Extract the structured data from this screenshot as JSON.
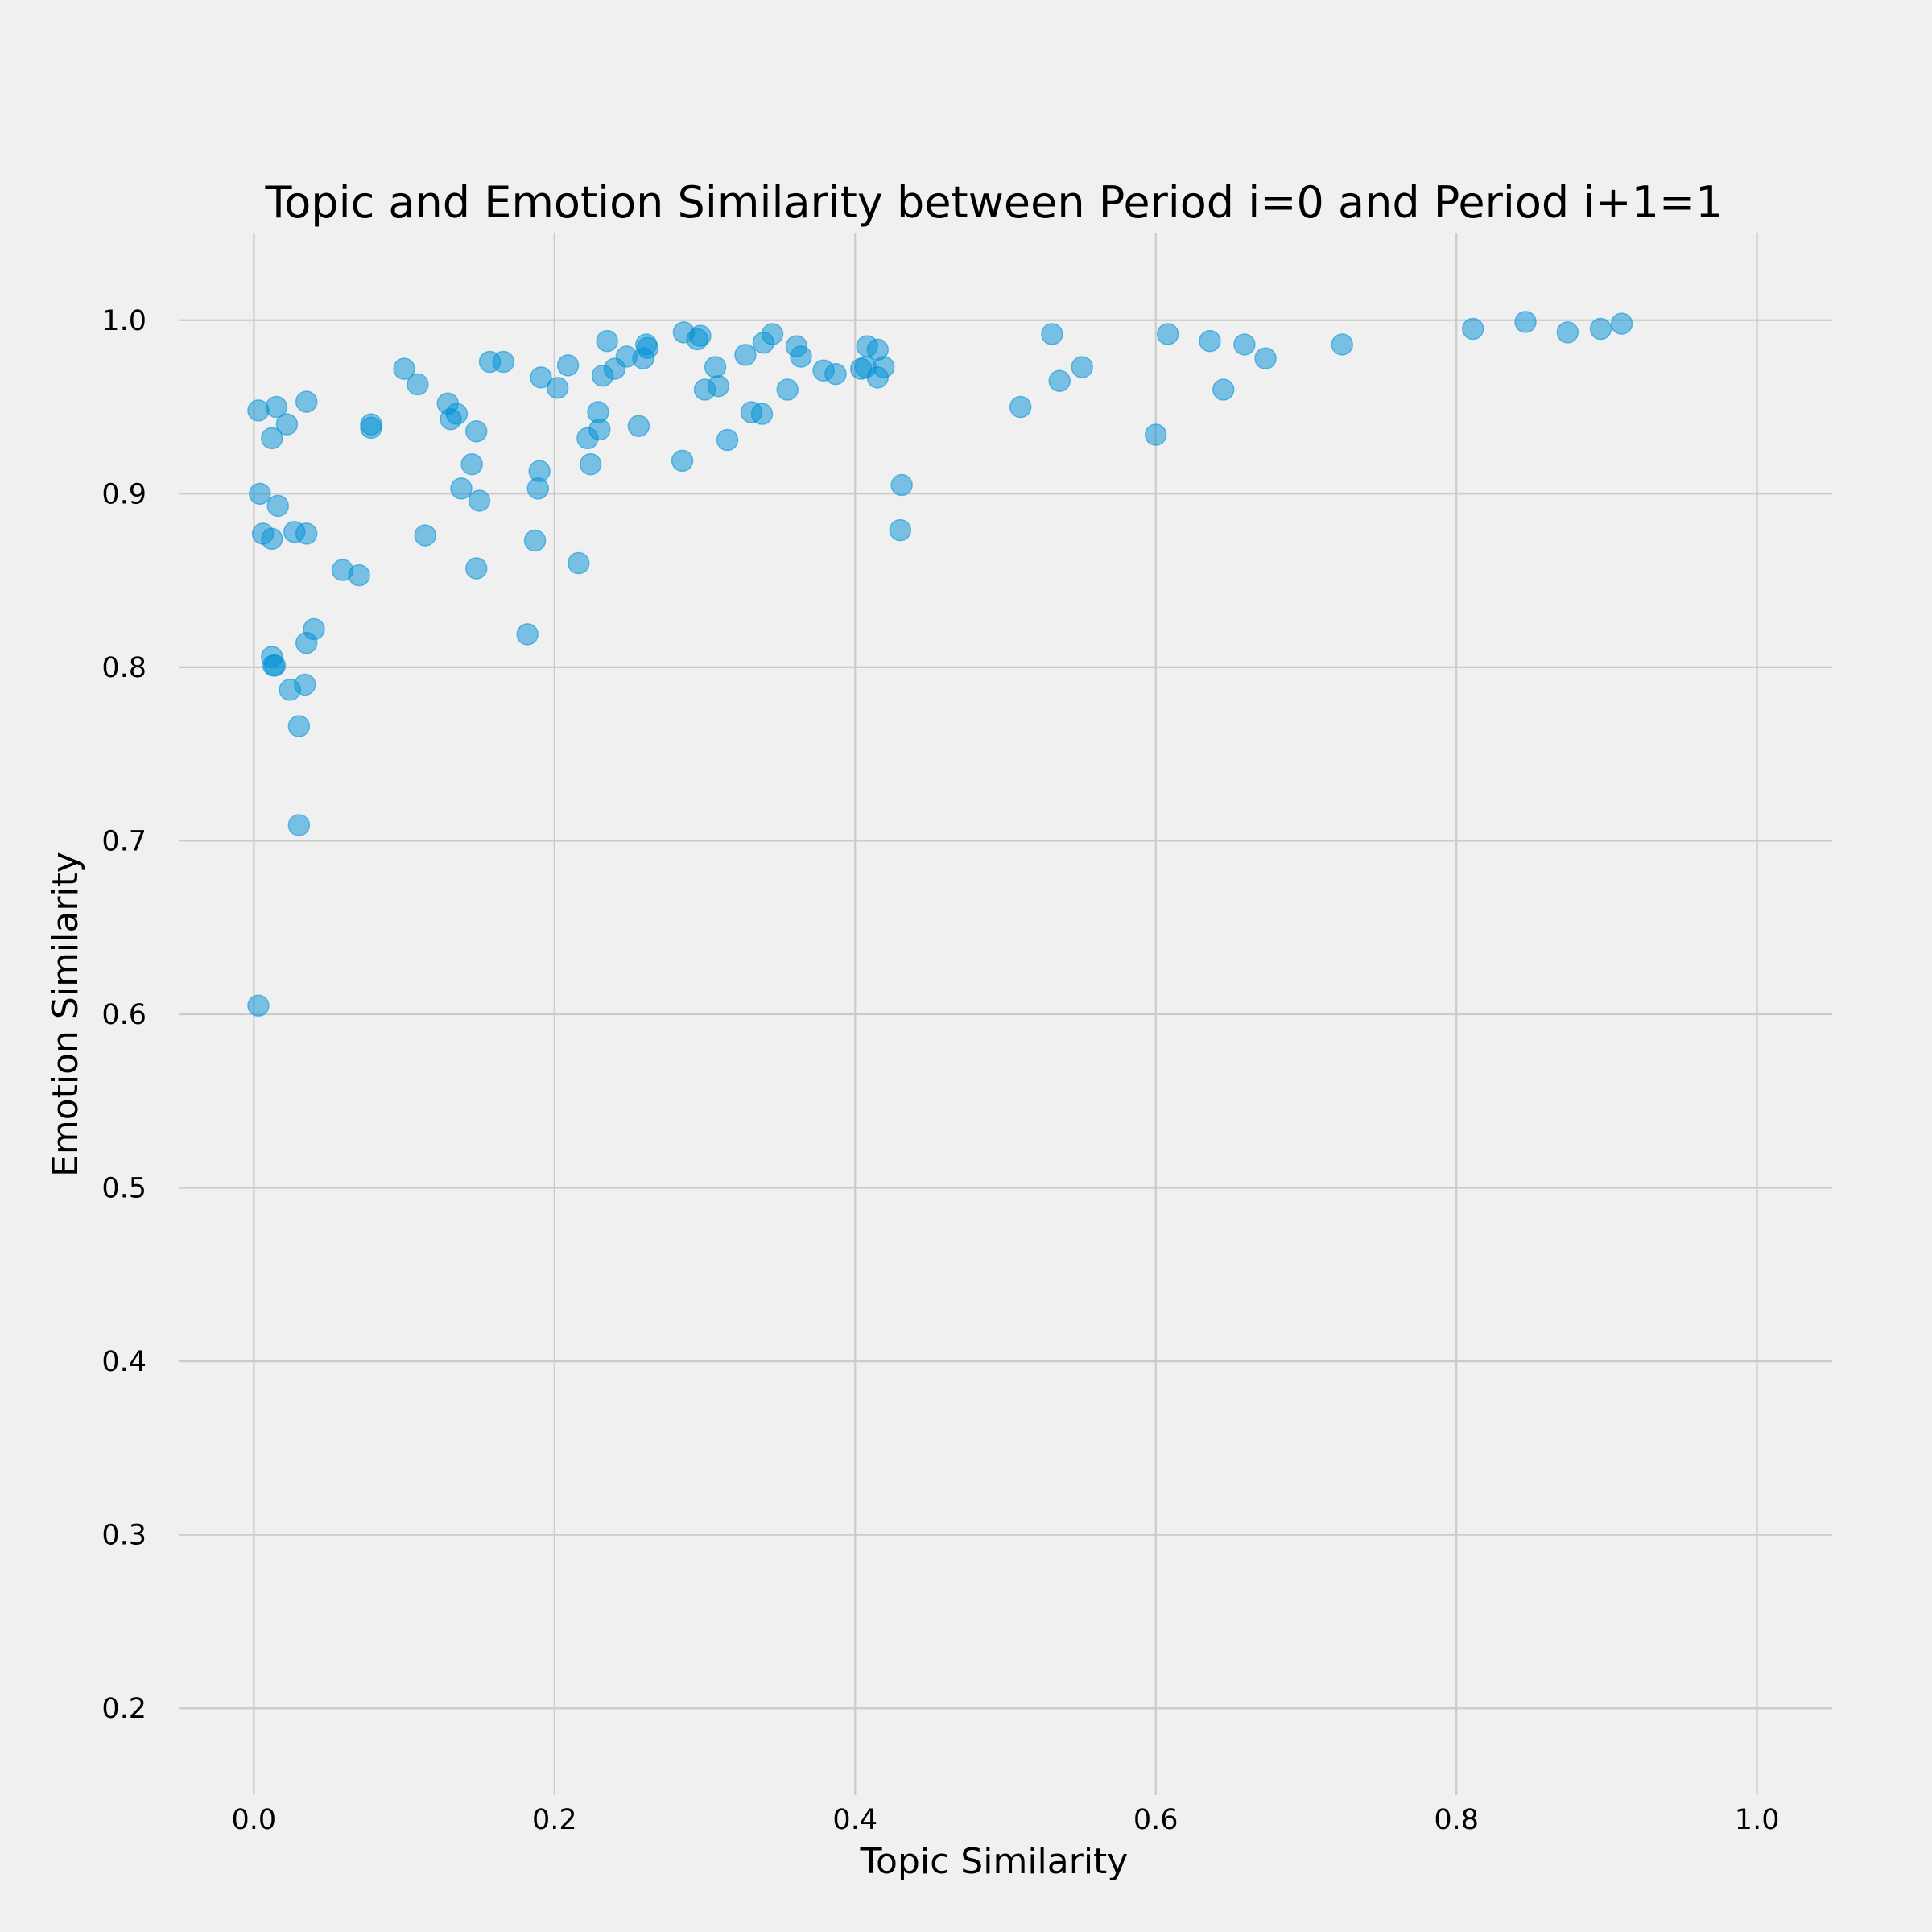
{
  "chart_data": {
    "type": "scatter",
    "title": "Topic and Emotion Similarity between Period i=0 and Period i+1=1",
    "xlabel": "Topic Similarity",
    "ylabel": "Emotion Similarity",
    "xlim": [
      -0.05,
      1.05
    ],
    "ylim": [
      0.15,
      1.05
    ],
    "xticks": [
      "0.0",
      "0.2",
      "0.4",
      "0.6",
      "0.8",
      "1.0"
    ],
    "yticks": [
      "0.2",
      "0.3",
      "0.4",
      "0.5",
      "0.6",
      "0.7",
      "0.8",
      "0.9",
      "1.0"
    ],
    "grid": true,
    "point_color": "#008fd5",
    "background_color": "#f0f0f0",
    "points": [
      {
        "x": 0.003,
        "y": 0.948
      },
      {
        "x": 0.004,
        "y": 0.9
      },
      {
        "x": 0.006,
        "y": 0.877
      },
      {
        "x": 0.012,
        "y": 0.932
      },
      {
        "x": 0.012,
        "y": 0.874
      },
      {
        "x": 0.015,
        "y": 0.95
      },
      {
        "x": 0.016,
        "y": 0.893
      },
      {
        "x": 0.022,
        "y": 0.94
      },
      {
        "x": 0.027,
        "y": 0.878
      },
      {
        "x": 0.035,
        "y": 0.953
      },
      {
        "x": 0.035,
        "y": 0.877
      },
      {
        "x": 0.012,
        "y": 0.806
      },
      {
        "x": 0.013,
        "y": 0.801
      },
      {
        "x": 0.014,
        "y": 0.801
      },
      {
        "x": 0.024,
        "y": 0.787
      },
      {
        "x": 0.034,
        "y": 0.79
      },
      {
        "x": 0.035,
        "y": 0.814
      },
      {
        "x": 0.04,
        "y": 0.822
      },
      {
        "x": 0.03,
        "y": 0.766
      },
      {
        "x": 0.03,
        "y": 0.709
      },
      {
        "x": 0.003,
        "y": 0.605
      },
      {
        "x": 0.059,
        "y": 0.856
      },
      {
        "x": 0.07,
        "y": 0.853
      },
      {
        "x": 0.078,
        "y": 0.938
      },
      {
        "x": 0.078,
        "y": 0.94
      },
      {
        "x": 0.1,
        "y": 0.972
      },
      {
        "x": 0.109,
        "y": 0.963
      },
      {
        "x": 0.114,
        "y": 0.876
      },
      {
        "x": 0.129,
        "y": 0.952
      },
      {
        "x": 0.131,
        "y": 0.943
      },
      {
        "x": 0.135,
        "y": 0.946
      },
      {
        "x": 0.138,
        "y": 0.903
      },
      {
        "x": 0.145,
        "y": 0.917
      },
      {
        "x": 0.148,
        "y": 0.936
      },
      {
        "x": 0.148,
        "y": 0.857
      },
      {
        "x": 0.15,
        "y": 0.896
      },
      {
        "x": 0.157,
        "y": 0.976
      },
      {
        "x": 0.166,
        "y": 0.976
      },
      {
        "x": 0.182,
        "y": 0.819
      },
      {
        "x": 0.187,
        "y": 0.873
      },
      {
        "x": 0.189,
        "y": 0.903
      },
      {
        "x": 0.19,
        "y": 0.913
      },
      {
        "x": 0.191,
        "y": 0.967
      },
      {
        "x": 0.202,
        "y": 0.961
      },
      {
        "x": 0.209,
        "y": 0.974
      },
      {
        "x": 0.216,
        "y": 0.86
      },
      {
        "x": 0.222,
        "y": 0.932
      },
      {
        "x": 0.224,
        "y": 0.917
      },
      {
        "x": 0.229,
        "y": 0.947
      },
      {
        "x": 0.23,
        "y": 0.937
      },
      {
        "x": 0.232,
        "y": 0.968
      },
      {
        "x": 0.235,
        "y": 0.988
      },
      {
        "x": 0.24,
        "y": 0.972
      },
      {
        "x": 0.248,
        "y": 0.979
      },
      {
        "x": 0.256,
        "y": 0.939
      },
      {
        "x": 0.259,
        "y": 0.978
      },
      {
        "x": 0.261,
        "y": 0.986
      },
      {
        "x": 0.262,
        "y": 0.984
      },
      {
        "x": 0.285,
        "y": 0.919
      },
      {
        "x": 0.286,
        "y": 0.993
      },
      {
        "x": 0.295,
        "y": 0.989
      },
      {
        "x": 0.297,
        "y": 0.991
      },
      {
        "x": 0.3,
        "y": 0.96
      },
      {
        "x": 0.307,
        "y": 0.973
      },
      {
        "x": 0.309,
        "y": 0.962
      },
      {
        "x": 0.315,
        "y": 0.931
      },
      {
        "x": 0.327,
        "y": 0.98
      },
      {
        "x": 0.331,
        "y": 0.947
      },
      {
        "x": 0.338,
        "y": 0.946
      },
      {
        "x": 0.339,
        "y": 0.987
      },
      {
        "x": 0.345,
        "y": 0.992
      },
      {
        "x": 0.355,
        "y": 0.96
      },
      {
        "x": 0.361,
        "y": 0.985
      },
      {
        "x": 0.364,
        "y": 0.979
      },
      {
        "x": 0.379,
        "y": 0.971
      },
      {
        "x": 0.387,
        "y": 0.969
      },
      {
        "x": 0.404,
        "y": 0.972
      },
      {
        "x": 0.407,
        "y": 0.973
      },
      {
        "x": 0.408,
        "y": 0.985
      },
      {
        "x": 0.415,
        "y": 0.983
      },
      {
        "x": 0.415,
        "y": 0.967
      },
      {
        "x": 0.419,
        "y": 0.973
      },
      {
        "x": 0.43,
        "y": 0.879
      },
      {
        "x": 0.431,
        "y": 0.905
      },
      {
        "x": 0.51,
        "y": 0.95
      },
      {
        "x": 0.531,
        "y": 0.992
      },
      {
        "x": 0.536,
        "y": 0.965
      },
      {
        "x": 0.551,
        "y": 0.973
      },
      {
        "x": 0.6,
        "y": 0.934
      },
      {
        "x": 0.608,
        "y": 0.992
      },
      {
        "x": 0.636,
        "y": 0.988
      },
      {
        "x": 0.645,
        "y": 0.96
      },
      {
        "x": 0.659,
        "y": 0.986
      },
      {
        "x": 0.673,
        "y": 0.978
      },
      {
        "x": 0.724,
        "y": 0.986
      },
      {
        "x": 0.811,
        "y": 0.995
      },
      {
        "x": 0.846,
        "y": 0.999
      },
      {
        "x": 0.874,
        "y": 0.993
      },
      {
        "x": 0.896,
        "y": 0.995
      },
      {
        "x": 0.91,
        "y": 0.998
      }
    ]
  }
}
